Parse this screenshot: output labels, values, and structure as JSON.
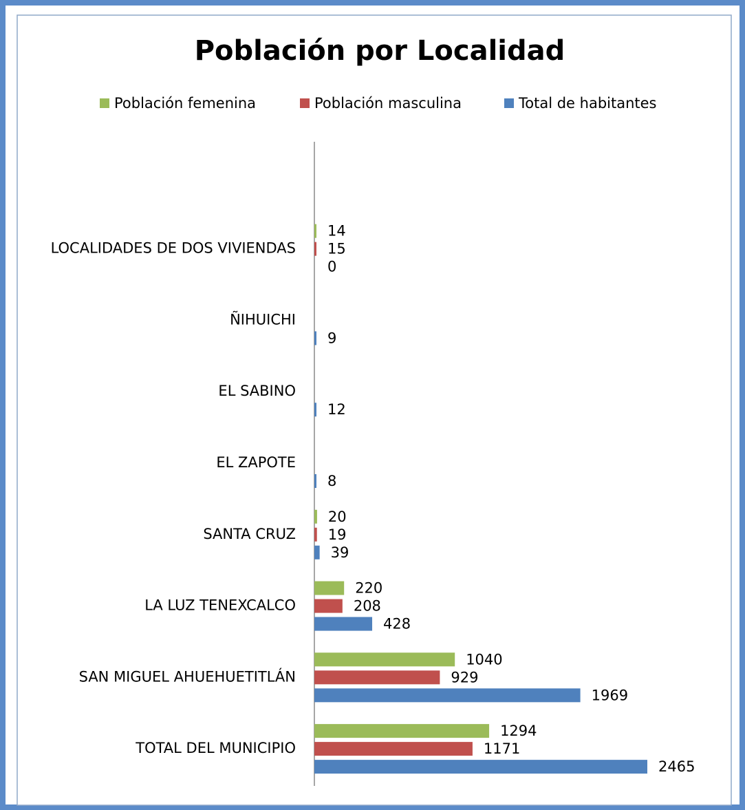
{
  "chart_data": {
    "type": "hbar",
    "title": "Población por Localidad",
    "categories": [
      "TOTAL DEL MUNICIPIO",
      "SAN MIGUEL AHUEHUETITLÁN",
      "LA LUZ TENEXCALCO",
      "SANTA CRUZ",
      "EL ZAPOTE",
      "EL SABINO",
      "ÑIHUICHI",
      "LOCALIDADES DE DOS VIVIENDAS",
      null
    ],
    "series": [
      {
        "name": "Población femenina",
        "color": "#9bbb59",
        "values": [
          1294,
          1040,
          220,
          20,
          null,
          null,
          null,
          14,
          null
        ]
      },
      {
        "name": "Población masculina",
        "color": "#c0504d",
        "values": [
          1171,
          929,
          208,
          19,
          null,
          null,
          null,
          15,
          null
        ]
      },
      {
        "name": "Total de habitantes",
        "color": "#4f81bd",
        "values": [
          2465,
          1969,
          428,
          39,
          8,
          12,
          9,
          0,
          null
        ]
      }
    ],
    "legend": "top"
  }
}
